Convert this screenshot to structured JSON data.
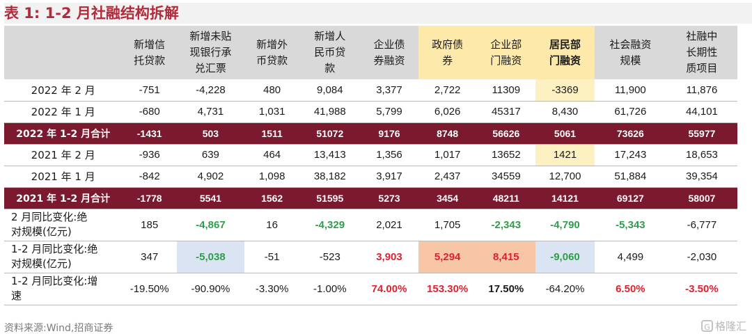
{
  "title": "表 1:  1-2 月社融结构拆解",
  "headers": [
    "",
    "新增信托贷款",
    "新增未贴现银行承兑汇票",
    "新增外币贷款",
    "新增人民币贷款",
    "企业债券融资",
    "政府债券",
    "企业部门融资",
    "居民部门融资",
    "社会融资规模",
    "社融中长期性质项目"
  ],
  "rows": [
    {
      "label": "2022 年 2 月",
      "values": [
        "-751",
        "-4,228",
        "480",
        "9,084",
        "3,377",
        "2,722",
        "11309",
        "-3369",
        "11,900",
        "11,876"
      ]
    },
    {
      "label": "2022 年 1 月",
      "values": [
        "-680",
        "4,731",
        "1,031",
        "41,988",
        "5,799",
        "6,026",
        "45317",
        "8,430",
        "61,726",
        "44,101"
      ]
    },
    {
      "label": "2022 年 1-2 月合计",
      "values": [
        "-1431",
        "503",
        "1511",
        "51072",
        "9176",
        "8748",
        "56626",
        "5061",
        "73626",
        "55977"
      ]
    },
    {
      "label": "2021 年 2 月",
      "values": [
        "-936",
        "639",
        "464",
        "13,413",
        "1,356",
        "1,017",
        "13652",
        "1421",
        "17,243",
        "18,653"
      ]
    },
    {
      "label": "2021 年 1 月",
      "values": [
        "-842",
        "4,902",
        "1,098",
        "38,182",
        "3,917",
        "2,437",
        "34559",
        "12,700",
        "51,884",
        "39,354"
      ]
    },
    {
      "label": "2021 年 1-2 月合计",
      "values": [
        "-1778",
        "5541",
        "1562",
        "51595",
        "5273",
        "3454",
        "48211",
        "14121",
        "69127",
        "58007"
      ]
    },
    {
      "label": "2 月同比变化:绝对规模(亿元)",
      "values": [
        "185",
        "-4,867",
        "16",
        "-4,329",
        "2,021",
        "1,705",
        "-2,343",
        "-4,790",
        "-5,343",
        "-6,777"
      ]
    },
    {
      "label": "1-2 月同比变化:绝对规模(亿元)",
      "values": [
        "347",
        "-5,038",
        "-51",
        "-523",
        "3,903",
        "5,294",
        "8,415",
        "-9,060",
        "4,499",
        "-2,030"
      ]
    },
    {
      "label": "1-2 月同比变化:增速",
      "values": [
        "-19.50%",
        "-90.90%",
        "-3.30%",
        "-1.00%",
        "74.00%",
        "153.30%",
        "17.50%",
        "-64.20%",
        "6.50%",
        "-3.50%"
      ]
    }
  ],
  "source": "资料来源:Wind,招商证券",
  "watermark": "格隆汇",
  "watermark_mark": "G",
  "colors": {
    "title": "#b32b3a",
    "sum_row_bg": "#7b1a2e",
    "positive": "#e0202f",
    "negative": "#2e9e4a",
    "highlight_yellow": "#fde9a9",
    "highlight_blue": "#dbe4f2",
    "highlight_orange": "#f6c6a6"
  }
}
